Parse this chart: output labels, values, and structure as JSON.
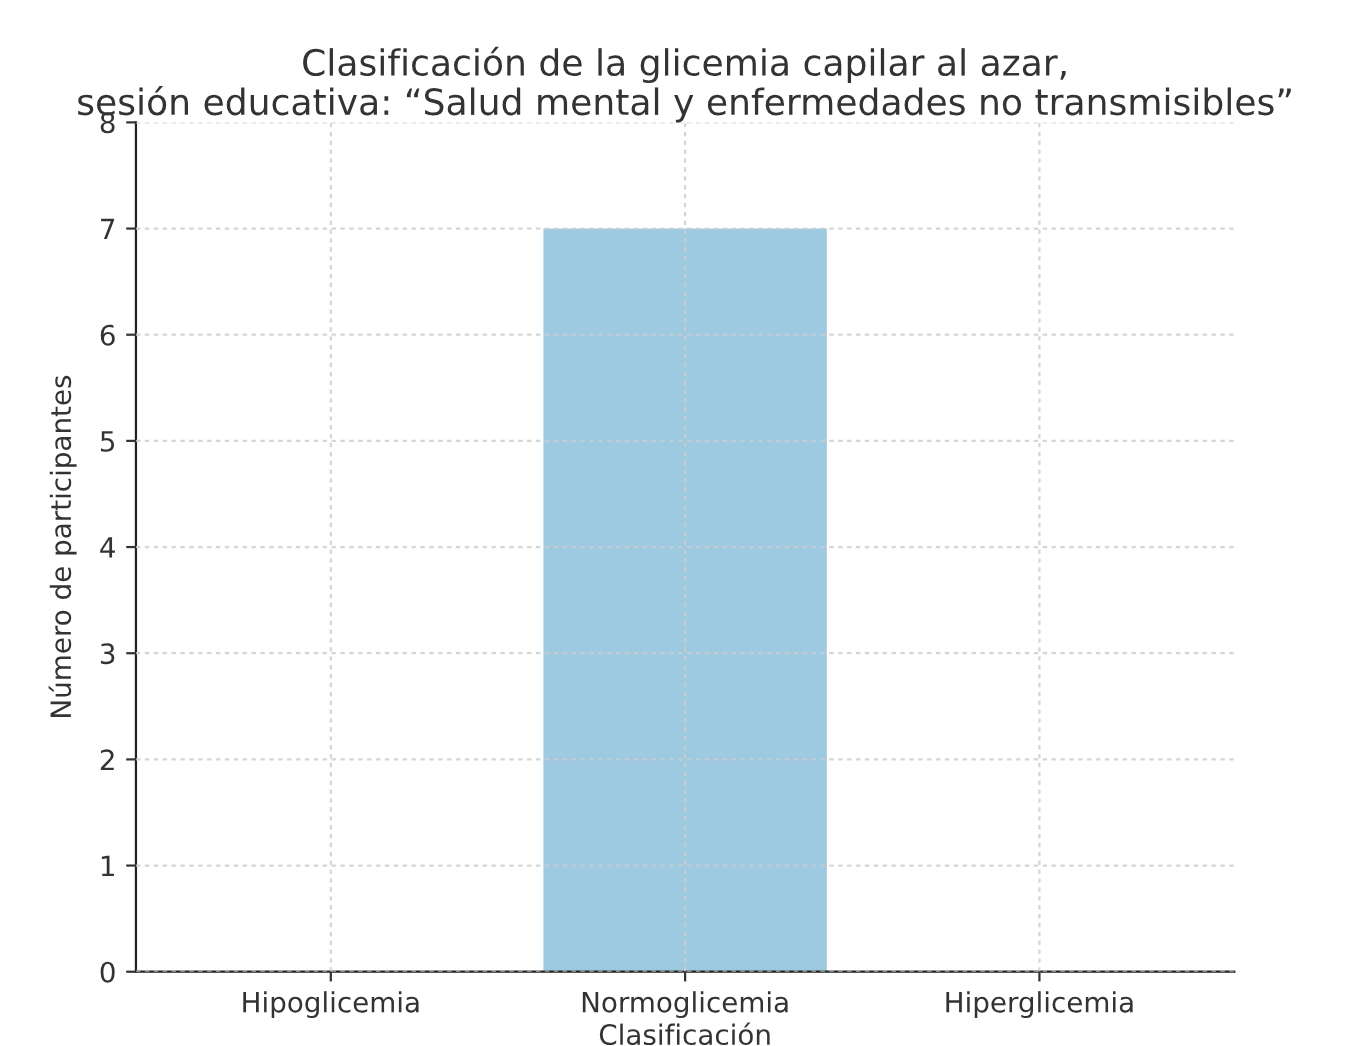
{
  "chart_data": {
    "type": "bar",
    "title": "Clasificación de la glicemia capilar al azar,\nsesión educativa: “Salud mental y enfermedades no transmisibles”",
    "xlabel": "Clasificación",
    "ylabel": "Número de participantes",
    "categories": [
      "Hipoglicemia",
      "Normoglicemia",
      "Hiperglicemia"
    ],
    "values": [
      0,
      7,
      0
    ],
    "color": "#9ecae1",
    "ylim": [
      0,
      8
    ],
    "yticks": [
      0,
      1,
      2,
      3,
      4,
      5,
      6,
      7,
      8
    ],
    "grid": true
  }
}
